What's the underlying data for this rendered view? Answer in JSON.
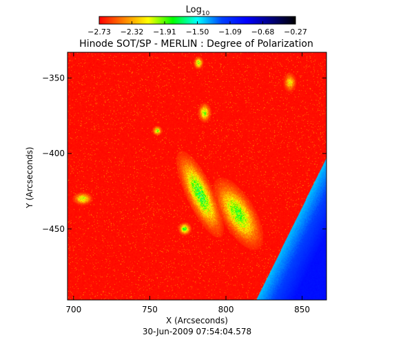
{
  "chart_data": {
    "type": "heatmap",
    "title": "Hinode SOT/SP - MERLIN : Degree of Polarization",
    "subtitle": "30-Jun-2009 07:54:04.578",
    "xlabel": "X (Arcseconds)",
    "ylabel": "Y (Arcseconds)",
    "xlim": [
      696,
      866
    ],
    "ylim": [
      -497,
      -333
    ],
    "xticks": [
      700,
      750,
      800,
      850
    ],
    "xtick_labels": [
      "700",
      "750",
      "800",
      "850"
    ],
    "yticks": [
      -350,
      -400,
      -450
    ],
    "ytick_labels": [
      "−350",
      "−400",
      "−450"
    ],
    "colorbar": {
      "label_base": "Log",
      "label_subscript": "10",
      "min": -2.73,
      "max": -0.27,
      "ticks": [
        -2.73,
        -2.32,
        -1.91,
        -1.5,
        -1.09,
        -0.68,
        -0.27
      ],
      "tick_labels": [
        "−2.73",
        "−2.32",
        "−1.91",
        "−1.50",
        "−1.09",
        "−0.68",
        "−0.27"
      ],
      "colormap": [
        "#ff0000",
        "#ff8000",
        "#ffff00",
        "#00ff00",
        "#00ffff",
        "#0040ff",
        "#0000ff",
        "#000080",
        "#000000"
      ]
    },
    "field": {
      "background_value": -2.72,
      "limb_points": [
        [
          820,
          -497
        ],
        [
          866,
          -403
        ]
      ],
      "limb_edge_value": -1.4,
      "limb_inner_value": -0.95,
      "features": [
        {
          "x": 783,
          "y": -427,
          "value": -1.7,
          "sx": 4,
          "sy": 14,
          "angle": 25
        },
        {
          "x": 808,
          "y": -440,
          "value": -1.8,
          "sx": 5,
          "sy": 12,
          "angle": 30
        },
        {
          "x": 786,
          "y": -373,
          "value": -1.9,
          "sx": 2,
          "sy": 3,
          "angle": 0
        },
        {
          "x": 782,
          "y": -340,
          "value": -1.9,
          "sx": 1.5,
          "sy": 2,
          "angle": 0
        },
        {
          "x": 842,
          "y": -353,
          "value": -2.1,
          "sx": 2,
          "sy": 3,
          "angle": 0
        },
        {
          "x": 773,
          "y": -450,
          "value": -1.8,
          "sx": 2,
          "sy": 2,
          "angle": 0
        },
        {
          "x": 706,
          "y": -430,
          "value": -1.95,
          "sx": 3,
          "sy": 2,
          "angle": 0
        },
        {
          "x": 755,
          "y": -385,
          "value": -1.9,
          "sx": 1.5,
          "sy": 1.5,
          "angle": 0
        }
      ]
    }
  }
}
